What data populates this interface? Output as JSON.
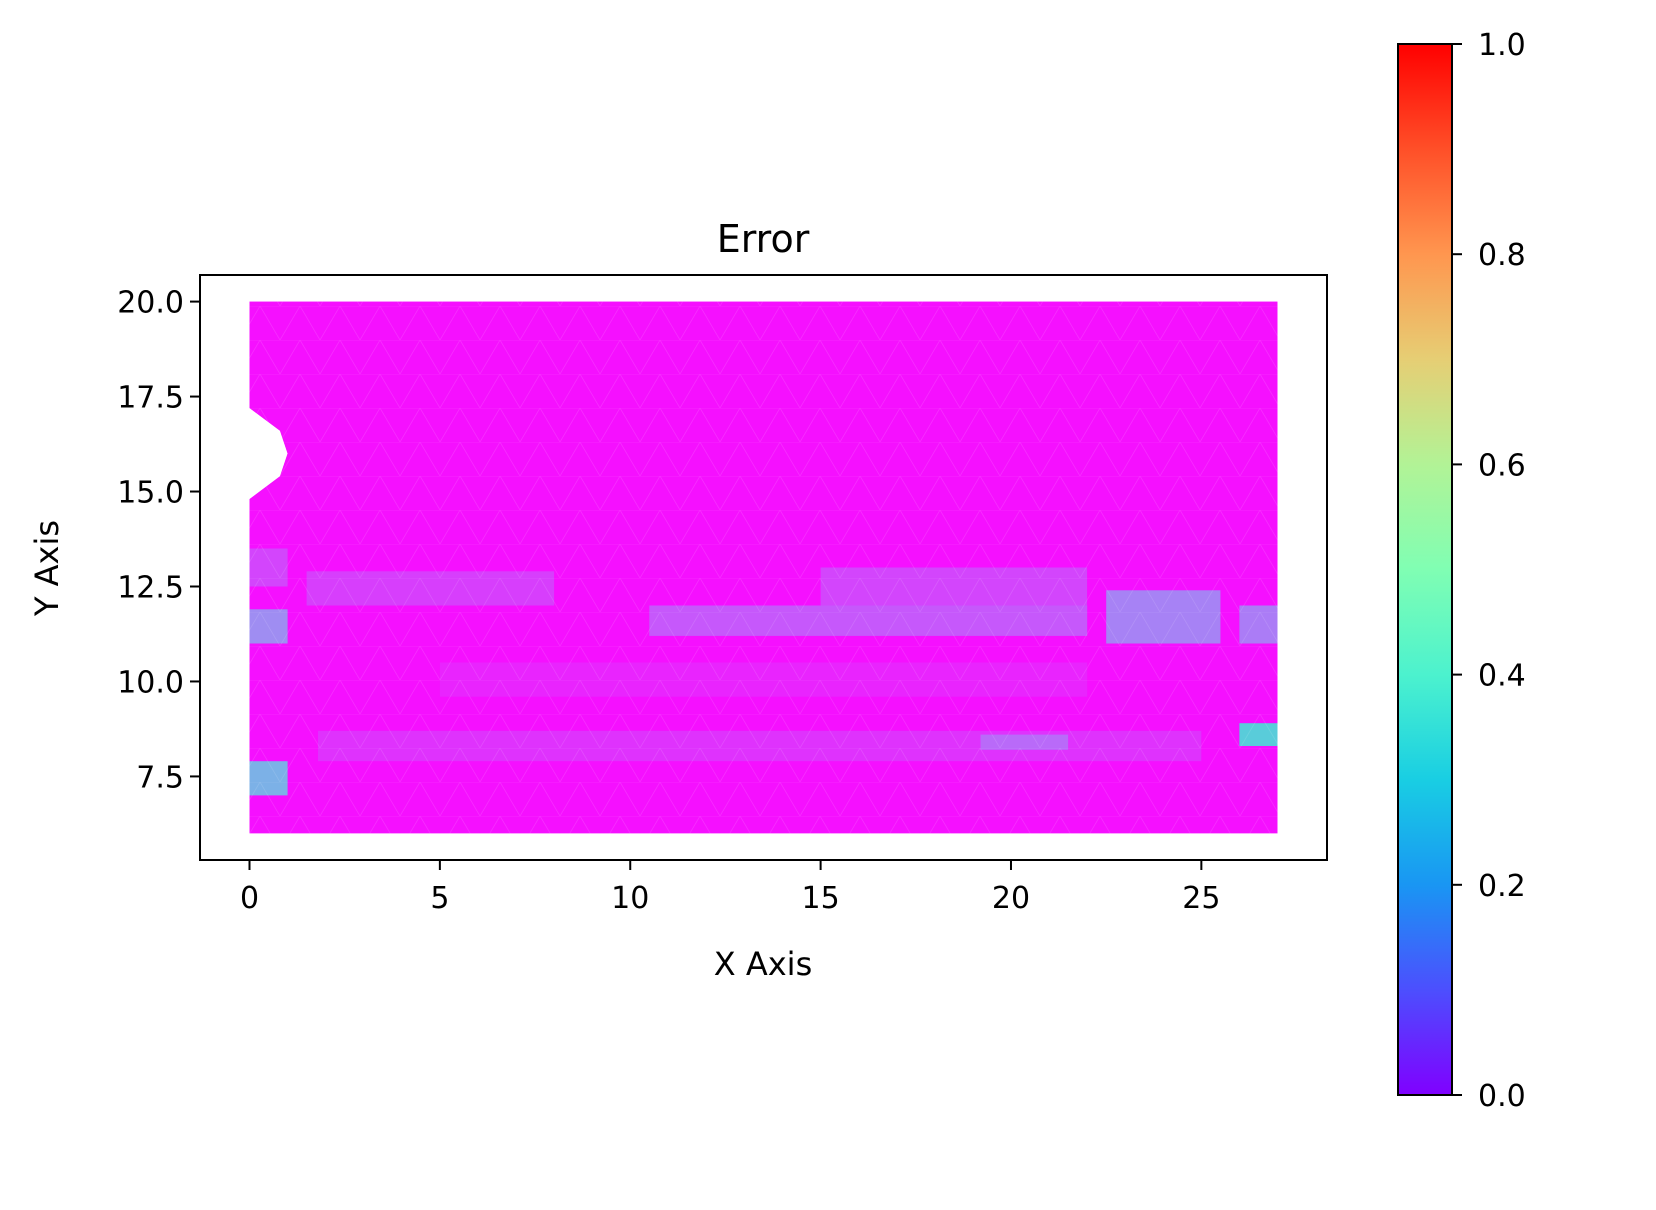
{
  "chart_data": {
    "type": "heatmap",
    "title": "Error",
    "xlabel": "X Axis",
    "ylabel": "Y Axis",
    "xlim": [
      -1.3,
      28.3
    ],
    "ylim": [
      5.3,
      20.7
    ],
    "x_ticks": [
      {
        "value": 0,
        "label": "0"
      },
      {
        "value": 5,
        "label": "5"
      },
      {
        "value": 10,
        "label": "10"
      },
      {
        "value": 15,
        "label": "15"
      },
      {
        "value": 20,
        "label": "20"
      },
      {
        "value": 25,
        "label": "25"
      }
    ],
    "y_ticks": [
      {
        "value": 7.5,
        "label": "7.5"
      },
      {
        "value": 10.0,
        "label": "10.0"
      },
      {
        "value": 12.5,
        "label": "12.5"
      },
      {
        "value": 15.0,
        "label": "15.0"
      },
      {
        "value": 17.5,
        "label": "17.5"
      },
      {
        "value": 20.0,
        "label": "20.0"
      }
    ],
    "grid": false,
    "colormap": "rainbow",
    "colorbar": {
      "range": [
        0.0,
        1.0
      ],
      "ticks": [
        {
          "value": 0.0,
          "label": "0.0"
        },
        {
          "value": 0.2,
          "label": "0.2"
        },
        {
          "value": 0.4,
          "label": "0.4"
        },
        {
          "value": 0.6,
          "label": "0.6"
        },
        {
          "value": 0.8,
          "label": "0.8"
        },
        {
          "value": 1.0,
          "label": "1.0"
        }
      ]
    },
    "domain": {
      "x": [
        0,
        27
      ],
      "y": [
        6,
        20
      ],
      "notch_polygon": [
        [
          0,
          17.2
        ],
        [
          0.8,
          16.6
        ],
        [
          1.0,
          16.0
        ],
        [
          0.8,
          15.4
        ],
        [
          0,
          14.8
        ]
      ]
    },
    "error_bands": [
      {
        "y_range": [
          7.0,
          7.9
        ],
        "x_range": [
          0,
          1
        ],
        "value": 0.3
      },
      {
        "y_range": [
          7.9,
          8.7
        ],
        "x_range": [
          1.8,
          25
        ],
        "value": 0.07
      },
      {
        "y_range": [
          8.3,
          8.9
        ],
        "x_range": [
          26,
          27
        ],
        "value": 0.38
      },
      {
        "y_range": [
          8.2,
          8.6
        ],
        "x_range": [
          19.2,
          21.5
        ],
        "value": 0.15
      },
      {
        "y_range": [
          9.6,
          10.5
        ],
        "x_range": [
          5,
          22
        ],
        "value": 0.05
      },
      {
        "y_range": [
          11.0,
          11.9
        ],
        "x_range": [
          0,
          1
        ],
        "value": 0.22
      },
      {
        "y_range": [
          11.2,
          12.0
        ],
        "x_range": [
          10.5,
          22
        ],
        "value": 0.13
      },
      {
        "y_range": [
          11.0,
          12.4
        ],
        "x_range": [
          22.5,
          25.5
        ],
        "value": 0.2
      },
      {
        "y_range": [
          11.0,
          12.0
        ],
        "x_range": [
          26,
          27
        ],
        "value": 0.19
      },
      {
        "y_range": [
          12.0,
          12.9
        ],
        "x_range": [
          1.5,
          8
        ],
        "value": 0.09
      },
      {
        "y_range": [
          12.0,
          13.0
        ],
        "x_range": [
          15,
          22
        ],
        "value": 0.1
      },
      {
        "y_range": [
          12.5,
          13.5
        ],
        "x_range": [
          0,
          1
        ],
        "value": 0.1
      },
      {
        "y_range": [
          14.0,
          20.0
        ],
        "x_range": [
          0,
          27
        ],
        "value": 0.02
      }
    ]
  }
}
